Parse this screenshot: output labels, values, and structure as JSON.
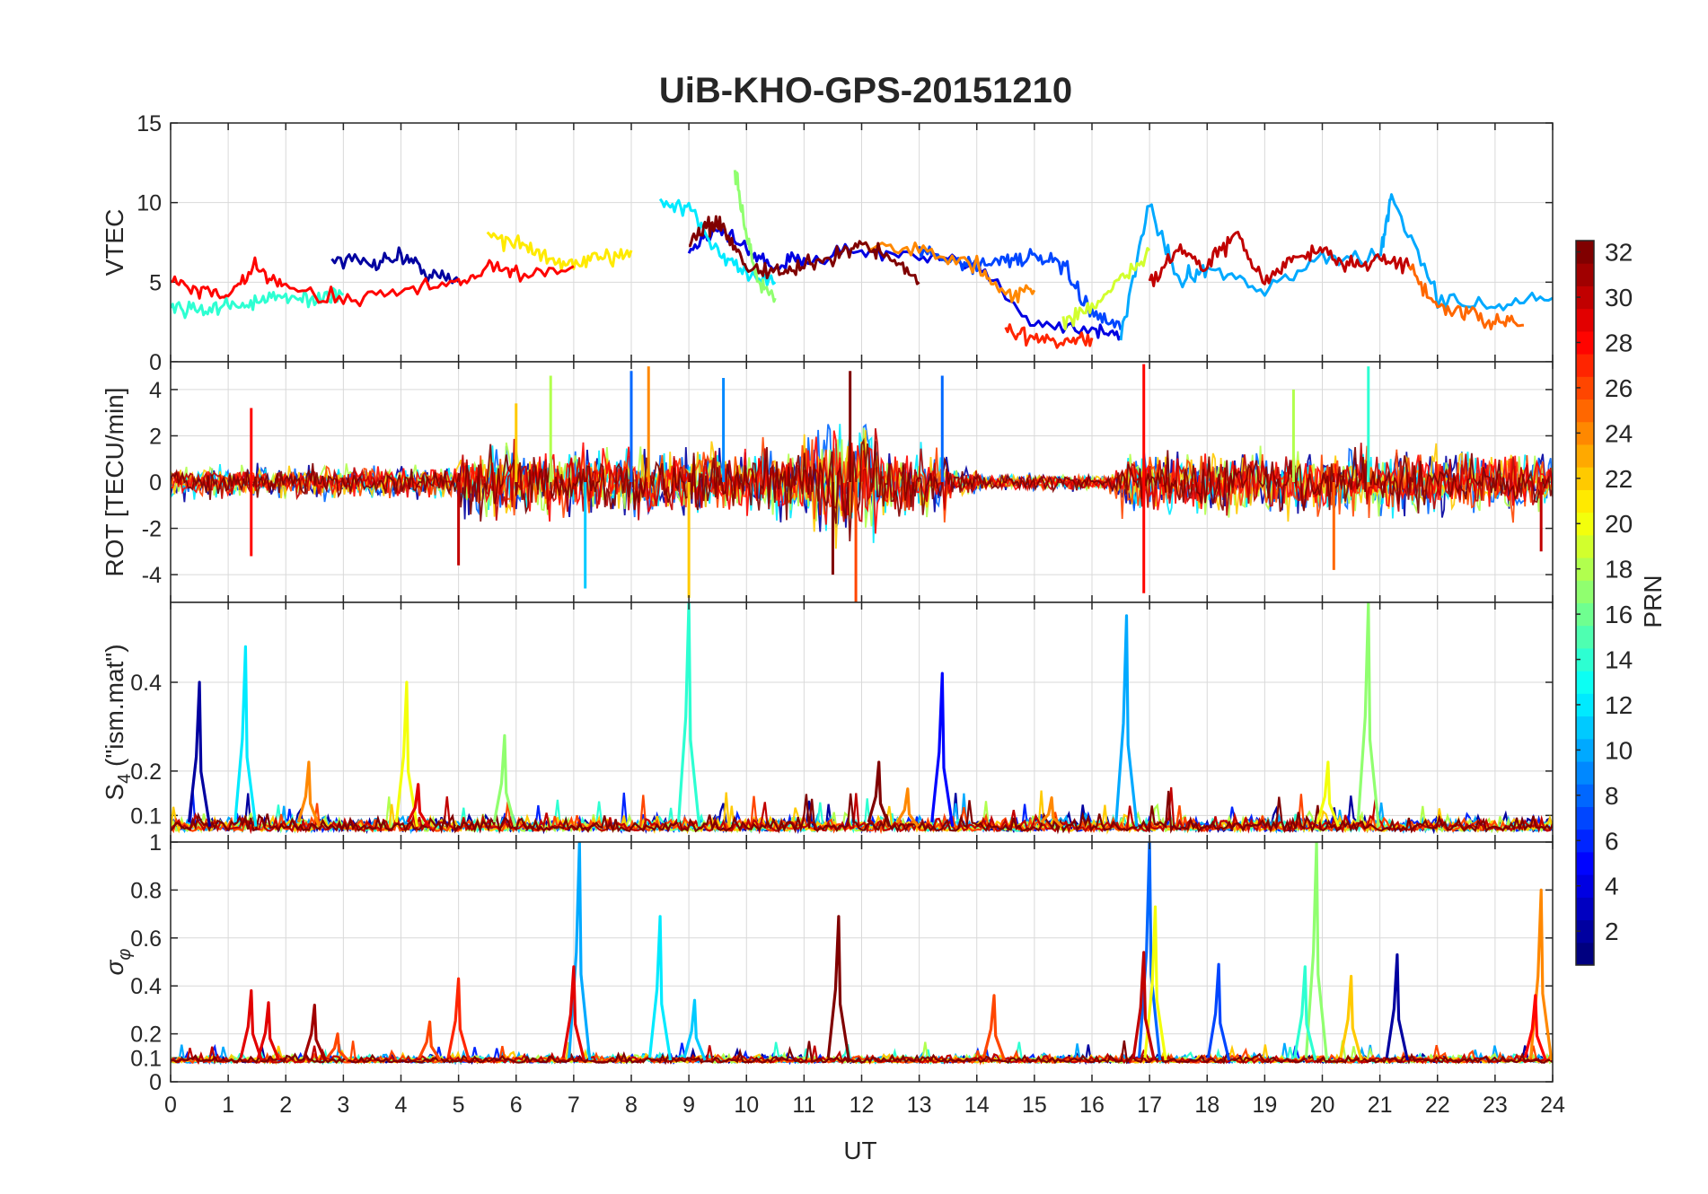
{
  "title": "UiB-KHO-GPS-20151210",
  "colors": {
    "axis": "#262626",
    "grid": "#d9d9d9",
    "background": "#ffffff"
  },
  "chart_data": [
    {
      "type": "line",
      "panel": "vtec",
      "ylabel": "VTEC",
      "ylim": [
        0,
        15
      ],
      "yticks": [
        "0",
        "5",
        "10",
        "15"
      ],
      "xlim": [
        0,
        24
      ],
      "grid": true,
      "series": [
        {
          "prn": 2,
          "x": [
            2.8,
            3.5,
            4.0,
            4.5,
            5.0
          ],
          "y": [
            6.5,
            6.2,
            6.7,
            5.5,
            5.0
          ]
        },
        {
          "prn": 4,
          "x": [
            9.0,
            9.5,
            10.0,
            10.5,
            11.0,
            12.0,
            13.0,
            14.0,
            15.0,
            16.0,
            16.5
          ],
          "y": [
            7.0,
            8.5,
            7.0,
            6.0,
            6.5,
            7.0,
            6.5,
            6.0,
            2.5,
            2.0,
            1.6
          ]
        },
        {
          "prn": 7,
          "x": [
            13.0,
            13.5,
            14.0,
            14.5,
            15.0,
            15.5,
            16.0,
            16.5
          ],
          "y": [
            7.0,
            6.5,
            6.0,
            6.5,
            6.5,
            6.0,
            3.0,
            2.0
          ]
        },
        {
          "prn": 10,
          "x": [
            16.5,
            17.0,
            17.5,
            18.0,
            19.0,
            20.0,
            21.0,
            21.2,
            22.0,
            23.0,
            24.0
          ],
          "y": [
            1.5,
            10.0,
            5.0,
            6.0,
            4.5,
            6.5,
            6.5,
            10.5,
            4.0,
            3.5,
            4.0
          ]
        },
        {
          "prn": 12,
          "x": [
            8.5,
            9.0,
            9.5,
            10.0,
            10.5
          ],
          "y": [
            10.0,
            9.5,
            7.0,
            5.5,
            5.0
          ]
        },
        {
          "prn": 14,
          "x": [
            0.0,
            0.5,
            1.0,
            1.5,
            2.0,
            2.5,
            3.0
          ],
          "y": [
            3.5,
            3.3,
            3.5,
            3.8,
            4.0,
            4.0,
            4.2
          ]
        },
        {
          "prn": 17,
          "x": [
            9.8,
            10.0,
            10.2,
            10.5
          ],
          "y": [
            12.0,
            8.0,
            5.0,
            4.0
          ]
        },
        {
          "prn": 19,
          "x": [
            15.5,
            16.0,
            16.5,
            17.0
          ],
          "y": [
            2.5,
            3.5,
            5.0,
            7.0
          ]
        },
        {
          "prn": 21,
          "x": [
            5.5,
            6.0,
            6.5,
            7.0,
            7.5,
            8.0
          ],
          "y": [
            8.0,
            7.5,
            6.5,
            6.0,
            6.5,
            7.0
          ]
        },
        {
          "prn": 24,
          "x": [
            12.0,
            13.0,
            14.0,
            14.5,
            15.0
          ],
          "y": [
            7.5,
            7.0,
            6.0,
            4.0,
            4.5
          ]
        },
        {
          "prn": 25,
          "x": [
            21.5,
            22.0,
            22.5,
            23.0,
            23.5
          ],
          "y": [
            6.0,
            3.5,
            3.0,
            2.5,
            2.3
          ]
        },
        {
          "prn": 27,
          "x": [
            14.5,
            15.0,
            15.5,
            16.0
          ],
          "y": [
            2.0,
            1.5,
            1.2,
            1.5
          ]
        },
        {
          "prn": 28,
          "x": [
            0.0,
            0.5,
            1.0,
            1.5,
            2.0,
            3.0,
            4.0,
            5.0,
            5.5,
            6.0,
            7.0
          ],
          "y": [
            5.0,
            4.5,
            4.0,
            6.0,
            4.5,
            4.0,
            4.5,
            5.0,
            6.0,
            5.5,
            6.0
          ]
        },
        {
          "prn": 30,
          "x": [
            17.0,
            17.5,
            18.0,
            18.5,
            19.0,
            19.5,
            20.0,
            20.5,
            21.0,
            21.5
          ],
          "y": [
            5.0,
            7.0,
            6.0,
            8.0,
            5.0,
            6.5,
            7.0,
            6.0,
            6.5,
            6.0
          ]
        },
        {
          "prn": 32,
          "x": [
            9.0,
            9.3,
            9.6,
            10.0,
            10.5,
            11.0,
            11.5,
            12.0,
            12.5,
            13.0
          ],
          "y": [
            7.5,
            8.5,
            8.5,
            6.0,
            5.5,
            6.0,
            6.5,
            7.5,
            6.5,
            5.0
          ]
        }
      ]
    },
    {
      "type": "line",
      "panel": "rot",
      "ylabel": "ROT [TECU/min]",
      "ylim": [
        -5.2,
        5.2
      ],
      "yticks": [
        "-4",
        "-2",
        "0",
        "2",
        "4"
      ],
      "xlim": [
        0,
        24
      ],
      "grid": true,
      "spikes": [
        {
          "prn": 28,
          "x": 1.4,
          "y": 3.2
        },
        {
          "prn": 28,
          "x": 1.4,
          "y": -3.2
        },
        {
          "prn": 30,
          "x": 5.0,
          "y": -3.6
        },
        {
          "prn": 22,
          "x": 6.0,
          "y": 3.4
        },
        {
          "prn": 18,
          "x": 6.6,
          "y": 4.6
        },
        {
          "prn": 11,
          "x": 7.2,
          "y": -4.6
        },
        {
          "prn": 8,
          "x": 8.0,
          "y": 4.8
        },
        {
          "prn": 24,
          "x": 8.3,
          "y": 5.0
        },
        {
          "prn": 22,
          "x": 9.0,
          "y": -5.0
        },
        {
          "prn": 9,
          "x": 9.6,
          "y": 4.5
        },
        {
          "prn": 32,
          "x": 11.5,
          "y": -4.0
        },
        {
          "prn": 32,
          "x": 11.8,
          "y": 4.8
        },
        {
          "prn": 26,
          "x": 11.9,
          "y": -5.2
        },
        {
          "prn": 8,
          "x": 13.4,
          "y": 4.6
        },
        {
          "prn": 28,
          "x": 16.9,
          "y": 5.1
        },
        {
          "prn": 28,
          "x": 16.9,
          "y": -4.8
        },
        {
          "prn": 18,
          "x": 19.5,
          "y": 4.0
        },
        {
          "prn": 25,
          "x": 20.2,
          "y": -3.8
        },
        {
          "prn": 14,
          "x": 20.8,
          "y": 5.0
        },
        {
          "prn": 30,
          "x": 23.8,
          "y": -3.0
        }
      ]
    },
    {
      "type": "line",
      "panel": "s4",
      "ylabel": "S",
      "ylabel_sub": "4",
      "ylabel_suffix": " (\"ism.mat\")",
      "ylim": [
        0.04,
        0.58
      ],
      "yticks": [
        "0.1",
        "0.2",
        "0.4"
      ],
      "xlim": [
        0,
        24
      ],
      "grid": true,
      "peaks": [
        {
          "prn": 2,
          "x": 0.5,
          "y": 0.4
        },
        {
          "prn": 12,
          "x": 1.3,
          "y": 0.48
        },
        {
          "prn": 24,
          "x": 2.4,
          "y": 0.22
        },
        {
          "prn": 20,
          "x": 4.1,
          "y": 0.4
        },
        {
          "prn": 29,
          "x": 4.3,
          "y": 0.17
        },
        {
          "prn": 17,
          "x": 5.8,
          "y": 0.28
        },
        {
          "prn": 14,
          "x": 9.0,
          "y": 0.58
        },
        {
          "prn": 32,
          "x": 12.3,
          "y": 0.22
        },
        {
          "prn": 24,
          "x": 12.8,
          "y": 0.16
        },
        {
          "prn": 5,
          "x": 13.4,
          "y": 0.42
        },
        {
          "prn": 24,
          "x": 15.3,
          "y": 0.14
        },
        {
          "prn": 10,
          "x": 16.6,
          "y": 0.55
        },
        {
          "prn": 20,
          "x": 20.1,
          "y": 0.22
        },
        {
          "prn": 17,
          "x": 20.8,
          "y": 0.58
        }
      ]
    },
    {
      "type": "line",
      "panel": "sigma_phi",
      "ylabel": "σ",
      "ylabel_sub": "φ",
      "ylim": [
        0,
        1
      ],
      "yticks": [
        "0",
        "0.1",
        "0.2",
        "0.4",
        "0.6",
        "0.8",
        "1"
      ],
      "xlim": [
        0,
        24
      ],
      "xticks": [
        "0",
        "1",
        "2",
        "3",
        "4",
        "5",
        "6",
        "7",
        "8",
        "9",
        "10",
        "11",
        "12",
        "13",
        "14",
        "15",
        "16",
        "17",
        "18",
        "19",
        "20",
        "21",
        "22",
        "23",
        "24"
      ],
      "xlabel": "UT",
      "grid": true,
      "peaks": [
        {
          "prn": 29,
          "x": 1.4,
          "y": 0.38
        },
        {
          "prn": 29,
          "x": 1.7,
          "y": 0.33
        },
        {
          "prn": 31,
          "x": 2.5,
          "y": 0.32
        },
        {
          "prn": 26,
          "x": 2.9,
          "y": 0.2
        },
        {
          "prn": 26,
          "x": 4.5,
          "y": 0.25
        },
        {
          "prn": 27,
          "x": 5.0,
          "y": 0.43
        },
        {
          "prn": 10,
          "x": 7.1,
          "y": 1.0
        },
        {
          "prn": 29,
          "x": 7.0,
          "y": 0.48
        },
        {
          "prn": 12,
          "x": 8.5,
          "y": 0.69
        },
        {
          "prn": 11,
          "x": 9.1,
          "y": 0.34
        },
        {
          "prn": 32,
          "x": 11.6,
          "y": 0.69
        },
        {
          "prn": 26,
          "x": 14.3,
          "y": 0.36
        },
        {
          "prn": 8,
          "x": 17.0,
          "y": 1.0
        },
        {
          "prn": 20,
          "x": 17.1,
          "y": 0.73
        },
        {
          "prn": 30,
          "x": 16.9,
          "y": 0.54
        },
        {
          "prn": 7,
          "x": 18.2,
          "y": 0.49
        },
        {
          "prn": 17,
          "x": 19.9,
          "y": 1.0
        },
        {
          "prn": 14,
          "x": 19.7,
          "y": 0.48
        },
        {
          "prn": 22,
          "x": 20.5,
          "y": 0.44
        },
        {
          "prn": 2,
          "x": 21.3,
          "y": 0.53
        },
        {
          "prn": 24,
          "x": 23.8,
          "y": 0.8
        },
        {
          "prn": 28,
          "x": 23.7,
          "y": 0.36
        }
      ]
    }
  ],
  "colorbar": {
    "label": "PRN",
    "min": 1,
    "max": 32,
    "ticks": [
      "2",
      "4",
      "6",
      "8",
      "10",
      "12",
      "14",
      "16",
      "18",
      "20",
      "22",
      "24",
      "26",
      "28",
      "30",
      "32"
    ]
  }
}
